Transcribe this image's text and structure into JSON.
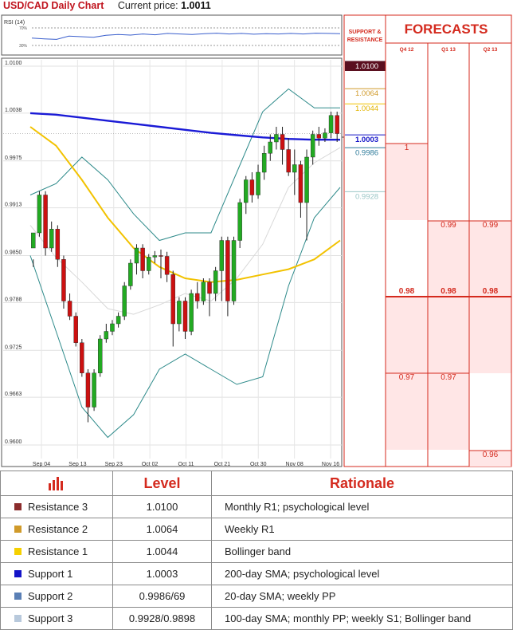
{
  "header": {
    "title": "USD/CAD Daily Chart",
    "price_label": "Current price:",
    "price_value": "1.0011"
  },
  "rsi_label": "RSI (14)",
  "rsi_ticks": [
    "70%",
    "30%"
  ],
  "sr_header": "SUPPORT & RESISTANCE",
  "forecasts_title": "FORECASTS",
  "forecast_periods": [
    "Q4 12",
    "Q1 13",
    "Q2 13"
  ],
  "colors": {
    "accent_red": "#d42a1e",
    "sma200": "#1a1ad6",
    "sma100": "#f2c200",
    "bollinger": "#2d8a8a",
    "candle_up": "#22aa22",
    "candle_down": "#cc1111",
    "forecast_bg": "#ffe3e3",
    "res3": "#8b2c2c",
    "res2": "#d09a2a",
    "res1": "#f5d000",
    "sup1": "#1414c8",
    "sup2": "#5a7fb5",
    "sup3": "#b8c9dc"
  },
  "chart_data": [
    {
      "type": "candlestick",
      "title": "USD/CAD Daily Chart",
      "y_ticks": [
        "1.0100",
        "1.0038",
        "0.9975",
        "0.9913",
        "0.9850",
        "0.9788",
        "0.9725",
        "0.9663",
        "0.9600"
      ],
      "ylim": [
        0.96,
        1.01
      ],
      "x_ticks": [
        "Sep 04",
        "Sep 13",
        "Sep 23",
        "Oct 02",
        "Oct 11",
        "Oct 21",
        "Oct 30",
        "Nov 08",
        "Nov 16"
      ],
      "grid": true,
      "candles": [
        [
          0.986,
          0.988,
          0.9845,
          0.9835
        ],
        [
          0.988,
          0.993,
          0.9935,
          0.9875
        ],
        [
          0.993,
          0.986,
          0.9935,
          0.985
        ],
        [
          0.986,
          0.9885,
          0.9895,
          0.9855
        ],
        [
          0.9885,
          0.9845,
          0.989,
          0.9835
        ],
        [
          0.9845,
          0.979,
          0.985,
          0.978
        ],
        [
          0.979,
          0.977,
          0.98,
          0.9765
        ],
        [
          0.977,
          0.9735,
          0.9775,
          0.973
        ],
        [
          0.9735,
          0.9695,
          0.974,
          0.969
        ],
        [
          0.9695,
          0.965,
          0.97,
          0.963
        ],
        [
          0.965,
          0.9695,
          0.97,
          0.9645
        ],
        [
          0.9695,
          0.974,
          0.9745,
          0.969
        ],
        [
          0.974,
          0.975,
          0.976,
          0.9735
        ],
        [
          0.975,
          0.976,
          0.9765,
          0.9745
        ],
        [
          0.976,
          0.977,
          0.9775,
          0.9755
        ],
        [
          0.977,
          0.981,
          0.9815,
          0.9765
        ],
        [
          0.981,
          0.984,
          0.9845,
          0.9805
        ],
        [
          0.984,
          0.986,
          0.9865,
          0.9825
        ],
        [
          0.986,
          0.983,
          0.9865,
          0.982
        ],
        [
          0.983,
          0.9848,
          0.9852,
          0.9825
        ],
        [
          0.9848,
          0.985,
          0.9856,
          0.984
        ],
        [
          0.985,
          0.9849,
          0.9858,
          0.982
        ],
        [
          0.9849,
          0.9825,
          0.9855,
          0.9815
        ],
        [
          0.9825,
          0.976,
          0.983,
          0.973
        ],
        [
          0.976,
          0.979,
          0.9795,
          0.975
        ],
        [
          0.979,
          0.975,
          0.9795,
          0.974
        ],
        [
          0.975,
          0.98,
          0.9805,
          0.9745
        ],
        [
          0.98,
          0.979,
          0.9815,
          0.978
        ],
        [
          0.979,
          0.9815,
          0.982,
          0.9785
        ],
        [
          0.9815,
          0.98,
          0.982,
          0.977
        ],
        [
          0.98,
          0.983,
          0.9835,
          0.979
        ],
        [
          0.983,
          0.987,
          0.9875,
          0.979
        ],
        [
          0.987,
          0.979,
          0.9875,
          0.977
        ],
        [
          0.979,
          0.987,
          0.9875,
          0.9785
        ],
        [
          0.987,
          0.992,
          0.9925,
          0.986
        ],
        [
          0.992,
          0.995,
          0.9955,
          0.9905
        ],
        [
          0.995,
          0.993,
          0.996,
          0.992
        ],
        [
          0.993,
          0.996,
          0.997,
          0.9925
        ],
        [
          0.996,
          0.9985,
          0.9995,
          0.995
        ],
        [
          0.9985,
          1.0,
          1.001,
          0.9975
        ],
        [
          1.0,
          1.001,
          1.002,
          0.999
        ],
        [
          1.001,
          0.999,
          1.002,
          0.997
        ],
        [
          0.999,
          0.996,
          1.0005,
          0.9955
        ],
        [
          0.996,
          0.997,
          0.999,
          0.993
        ],
        [
          0.997,
          0.992,
          0.9975,
          0.99
        ],
        [
          0.992,
          0.998,
          0.999,
          0.987
        ],
        [
          0.998,
          1.001,
          1.0015,
          0.997
        ],
        [
          1.001,
          1.0005,
          1.002,
          0.9995
        ],
        [
          1.0005,
          1.0012,
          1.0018,
          1.0
        ],
        [
          1.0012,
          1.0035,
          1.004,
          1.0005
        ],
        [
          1.0035,
          1.0011,
          1.004,
          1.0
        ]
      ],
      "series": [
        {
          "name": "200-day SMA",
          "values": [
            1.0038,
            1.0036,
            1.0032,
            1.0028,
            1.0024,
            1.002,
            1.0016,
            1.0012,
            1.0009,
            1.0006,
            1.0004,
            1.0003,
            1.0003
          ]
        },
        {
          "name": "100-day SMA",
          "values": [
            1.002,
            0.9995,
            0.995,
            0.99,
            0.986,
            0.9835,
            0.982,
            0.9815,
            0.9818,
            0.9825,
            0.9832,
            0.9845,
            0.987
          ]
        },
        {
          "name": "Bollinger upper",
          "values": [
            0.993,
            0.9945,
            0.998,
            0.995,
            0.9905,
            0.987,
            0.988,
            0.988,
            0.996,
            1.004,
            1.007,
            1.0045,
            1.0045
          ]
        },
        {
          "name": "Bollinger lower",
          "values": [
            0.985,
            0.975,
            0.965,
            0.961,
            0.964,
            0.97,
            0.972,
            0.97,
            0.968,
            0.969,
            0.981,
            0.99,
            0.994
          ]
        }
      ]
    },
    {
      "type": "line",
      "title": "RSI (14)",
      "ylim": [
        0,
        100
      ],
      "values": [
        45,
        42,
        40,
        52,
        50,
        48,
        55,
        58,
        56,
        60,
        57,
        62,
        60,
        58,
        61,
        63,
        60,
        62,
        59,
        61,
        60,
        62,
        60,
        63,
        62,
        61
      ]
    },
    {
      "type": "table",
      "title": "Support & Resistance levels",
      "levels": [
        {
          "value": "1.0100",
          "key": "res3"
        },
        {
          "value": "1.0064",
          "key": "res2"
        },
        {
          "value": "1.0044",
          "key": "res1"
        },
        {
          "value": "1.0003",
          "key": "sup1"
        },
        {
          "value": "0.9986",
          "key": "sup2"
        },
        {
          "value": "0.9928",
          "key": "sup3"
        }
      ]
    },
    {
      "type": "table",
      "title": "FORECASTS",
      "columns": [
        "Q4 12",
        "Q1 13",
        "Q2 13"
      ],
      "grid_values": [
        "1",
        "0.99",
        "0.98",
        "0.97",
        "0.96"
      ],
      "markers": [
        {
          "column": "Q4 12",
          "value": "1"
        },
        {
          "column": "Q1 13",
          "value": "0.99"
        },
        {
          "column": "Q2 13",
          "value": "0.99"
        },
        {
          "column": "Q4 12",
          "value": "0.98"
        },
        {
          "column": "Q1 13",
          "value": "0.98"
        },
        {
          "column": "Q2 13",
          "value": "0.98"
        },
        {
          "column": "Q4 12",
          "value": "0.97"
        },
        {
          "column": "Q1 13",
          "value": "0.97"
        },
        {
          "column": "Q2 13",
          "value": "0.96"
        }
      ]
    }
  ],
  "table": {
    "headers": {
      "level": "Level",
      "rationale": "Rationale"
    },
    "rows": [
      {
        "name": "Resistance 3",
        "level": "1.0100",
        "rationale": "Monthly R1; psychological level"
      },
      {
        "name": "Resistance 2",
        "level": "1.0064",
        "rationale": "Weekly R1"
      },
      {
        "name": "Resistance 1",
        "level": "1.0044",
        "rationale": "Bollinger band"
      },
      {
        "name": "Support 1",
        "level": "1.0003",
        "rationale": "200-day SMA; psychological level"
      },
      {
        "name": "Support 2",
        "level": "0.9986/69",
        "rationale": "20-day SMA; weekly PP"
      },
      {
        "name": "Support 3",
        "level": "0.9928/0.9898",
        "rationale": "100-day SMA; monthly PP; weekly S1; Bollinger band"
      }
    ]
  }
}
